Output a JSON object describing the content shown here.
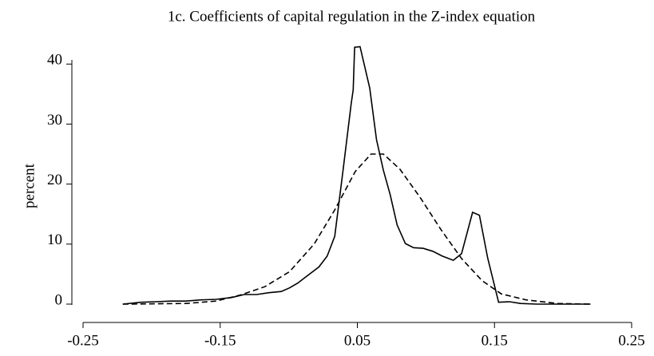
{
  "chart_data": {
    "type": "line",
    "title": "1c. Coefficients of capital regulation in the Z-index equation",
    "y_label": "percent",
    "xlim": [
      -0.25,
      0.25
    ],
    "xticks": [
      -0.25,
      -0.15,
      0.05,
      0.15,
      0.25
    ],
    "ylim": [
      0,
      40.7
    ],
    "yticks": [
      0,
      10,
      20,
      30,
      40
    ],
    "series": [
      {
        "color": "#000000",
        "dash": "solid",
        "x": [
          -0.221,
          -0.208,
          -0.197,
          -0.186,
          -0.175,
          -0.164,
          -0.153,
          -0.133,
          -0.115,
          -0.097,
          -0.079,
          -0.061,
          -0.049,
          -0.037,
          -0.021,
          -0.006,
          0.006,
          0.017,
          0.029,
          0.041,
          0.044,
          0.046,
          0.052,
          0.059,
          0.064,
          0.069,
          0.074,
          0.079,
          0.085,
          0.091,
          0.098,
          0.105,
          0.112,
          0.12,
          0.126,
          0.134,
          0.139,
          0.145,
          0.153,
          0.161,
          0.169,
          0.181,
          0.196,
          0.22
        ],
        "values": [
          0,
          0.3,
          0.4,
          0.5,
          0.5,
          0.7,
          0.8,
          1.1,
          1.6,
          1.6,
          1.9,
          2.1,
          2.7,
          3.5,
          4.9,
          6.2,
          8.0,
          11.3,
          22.2,
          33.4,
          35.7,
          42.8,
          42.9,
          36,
          27.4,
          22.3,
          18.2,
          13.2,
          10.1,
          9.4,
          9.3,
          8.8,
          8.0,
          7.3,
          8.4,
          15.3,
          14.8,
          7.7,
          0.3,
          0.4,
          0.1,
          0,
          0,
          0
        ]
      },
      {
        "color": "#000000",
        "dash": "dashed",
        "x": [
          -0.221,
          -0.175,
          -0.153,
          -0.121,
          -0.085,
          -0.049,
          -0.013,
          0.017,
          0.047,
          0.06,
          0.069,
          0.081,
          0.096,
          0.111,
          0.126,
          0.141,
          0.155,
          0.173,
          0.196,
          0.22
        ],
        "values": [
          0,
          0.1,
          0.5,
          1.5,
          2.9,
          5.4,
          10,
          15.7,
          22.1,
          25,
          25,
          22.5,
          17.7,
          12.4,
          7.6,
          3.9,
          1.7,
          0.7,
          0.1,
          0
        ]
      }
    ]
  }
}
